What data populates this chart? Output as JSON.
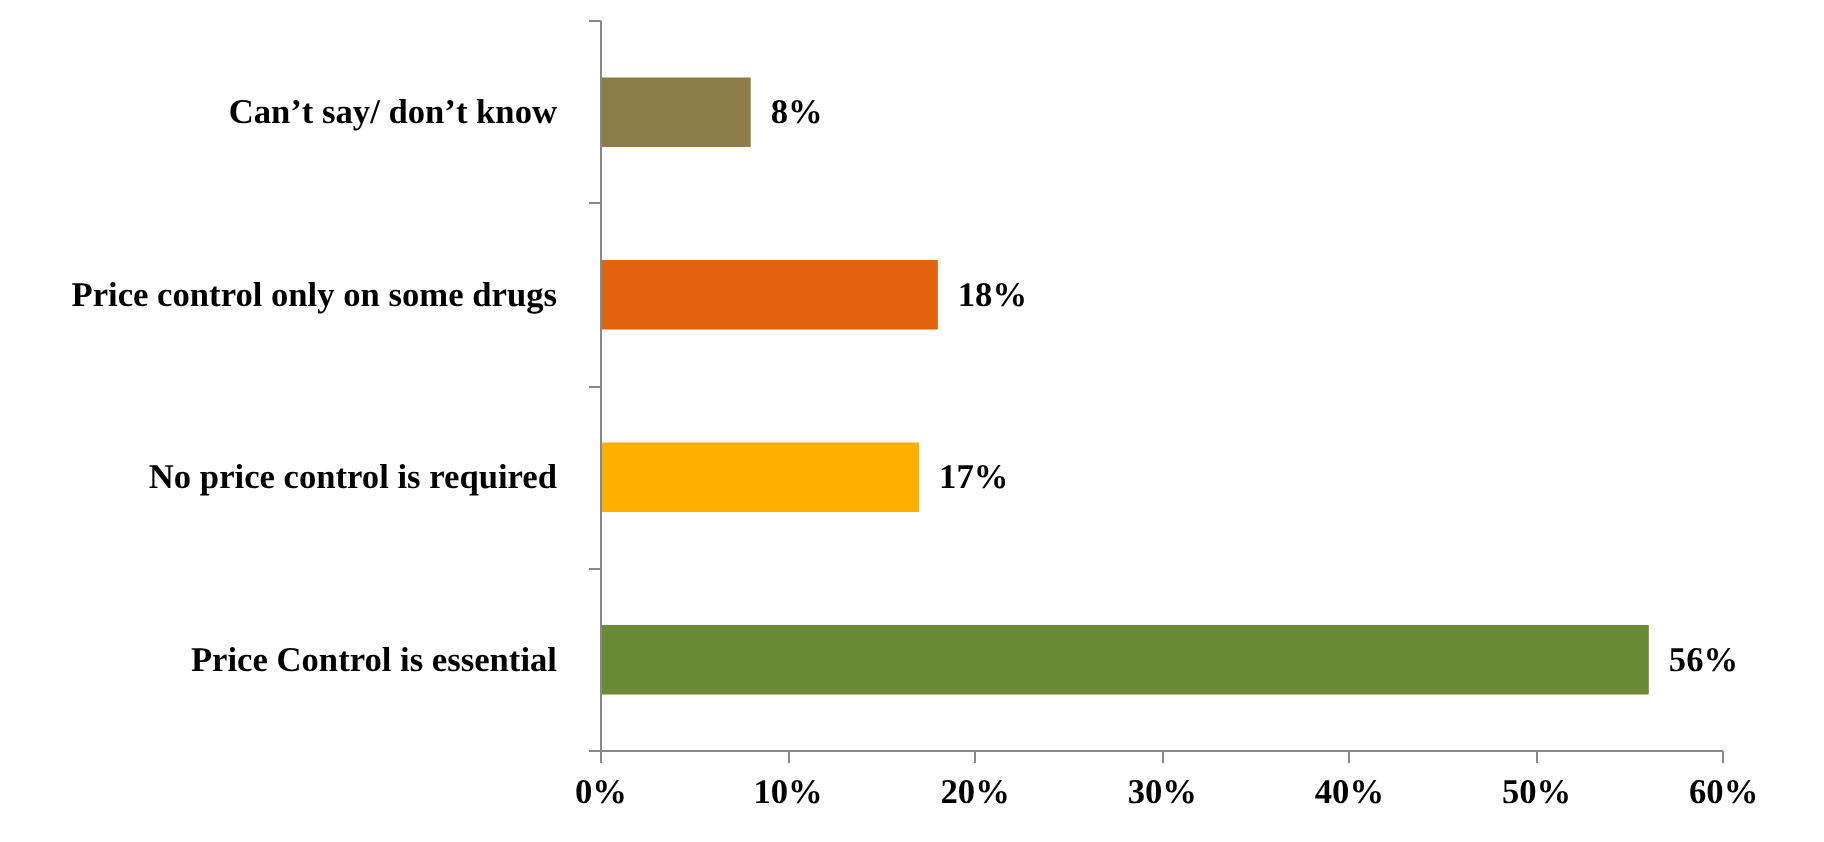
{
  "chart_data": {
    "type": "bar",
    "orientation": "horizontal",
    "categories": [
      "Can’t say/ don’t know",
      "Price control only on some drugs",
      "No price control is required",
      "Price Control is essential"
    ],
    "values": [
      8,
      18,
      17,
      56
    ],
    "colors": [
      "#8b7d45",
      "#e0620c",
      "#fdb000",
      "#6b8a35"
    ],
    "value_labels": [
      "8%",
      "18%",
      "17%",
      "56%"
    ],
    "xlim": [
      0,
      60
    ],
    "xticks": [
      {
        "value": 0,
        "label": "0%"
      },
      {
        "value": 10,
        "label": "10%"
      },
      {
        "value": 20,
        "label": "20%"
      },
      {
        "value": 30,
        "label": "30%"
      },
      {
        "value": 40,
        "label": "40%"
      },
      {
        "value": 50,
        "label": "50%"
      },
      {
        "value": 60,
        "label": "60%"
      }
    ],
    "grid": false
  }
}
